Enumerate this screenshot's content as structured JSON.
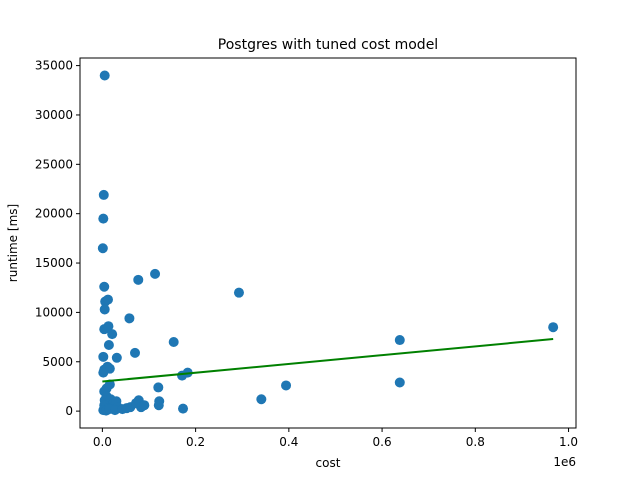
{
  "chart_data": {
    "type": "scatter",
    "title": "Postgres with tuned cost model",
    "xlabel": "cost",
    "ylabel": "runtime [ms]",
    "x_multiplier_label": "1e6",
    "xlim": [
      -0.048,
      1.016
    ],
    "ylim": [
      -1710,
      35770
    ],
    "x_ticks": [
      0.0,
      0.2,
      0.4,
      0.6,
      0.8,
      1.0
    ],
    "x_tick_labels": [
      "0.0",
      "0.2",
      "0.4",
      "0.6",
      "0.8",
      "1.0"
    ],
    "y_ticks": [
      0,
      5000,
      10000,
      15000,
      20000,
      25000,
      30000,
      35000
    ],
    "y_tick_labels": [
      "0",
      "5000",
      "10000",
      "15000",
      "20000",
      "25000",
      "30000",
      "35000"
    ],
    "grid": false,
    "colors": {
      "points": "#1f77b4",
      "fit_line": "#008000"
    },
    "series": [
      {
        "kind": "scatter",
        "points": [
          [
            0.005,
            34000
          ],
          [
            0.003,
            21900
          ],
          [
            0.002,
            19500
          ],
          [
            0.001,
            16500
          ],
          [
            0.004,
            12600
          ],
          [
            0.006,
            11100
          ],
          [
            0.012,
            11300
          ],
          [
            0.005,
            10300
          ],
          [
            0.004,
            8300
          ],
          [
            0.013,
            8600
          ],
          [
            0.021,
            7800
          ],
          [
            0.014,
            6700
          ],
          [
            0.002,
            5500
          ],
          [
            0.031,
            5400
          ],
          [
            0.07,
            5900
          ],
          [
            0.058,
            9400
          ],
          [
            0.077,
            13300
          ],
          [
            0.113,
            13900
          ],
          [
            0.153,
            7000
          ],
          [
            0.293,
            12000
          ],
          [
            0.004,
            4200
          ],
          [
            0.011,
            4500
          ],
          [
            0.016,
            4300
          ],
          [
            0.002,
            3900
          ],
          [
            0.009,
            2300
          ],
          [
            0.016,
            2700
          ],
          [
            0.004,
            2000
          ],
          [
            0.009,
            1500
          ],
          [
            0.005,
            1100
          ],
          [
            0.018,
            1200
          ],
          [
            0.022,
            700
          ],
          [
            0.03,
            1000
          ],
          [
            0.033,
            400
          ],
          [
            0.004,
            600
          ],
          [
            0.012,
            300
          ],
          [
            0.002,
            100
          ],
          [
            0.008,
            50
          ],
          [
            0.015,
            200
          ],
          [
            0.027,
            100
          ],
          [
            0.043,
            200
          ],
          [
            0.052,
            300
          ],
          [
            0.06,
            400
          ],
          [
            0.072,
            800
          ],
          [
            0.078,
            1100
          ],
          [
            0.083,
            400
          ],
          [
            0.09,
            600
          ],
          [
            0.12,
            2400
          ],
          [
            0.122,
            1000
          ],
          [
            0.121,
            600
          ],
          [
            0.171,
            3600
          ],
          [
            0.183,
            3900
          ],
          [
            0.173,
            250
          ],
          [
            0.341,
            1200
          ],
          [
            0.394,
            2600
          ],
          [
            0.638,
            2900
          ],
          [
            0.638,
            7200
          ],
          [
            0.967,
            8500
          ]
        ]
      },
      {
        "kind": "line",
        "points": [
          [
            0.0,
            3000
          ],
          [
            0.967,
            7300
          ]
        ]
      }
    ]
  }
}
